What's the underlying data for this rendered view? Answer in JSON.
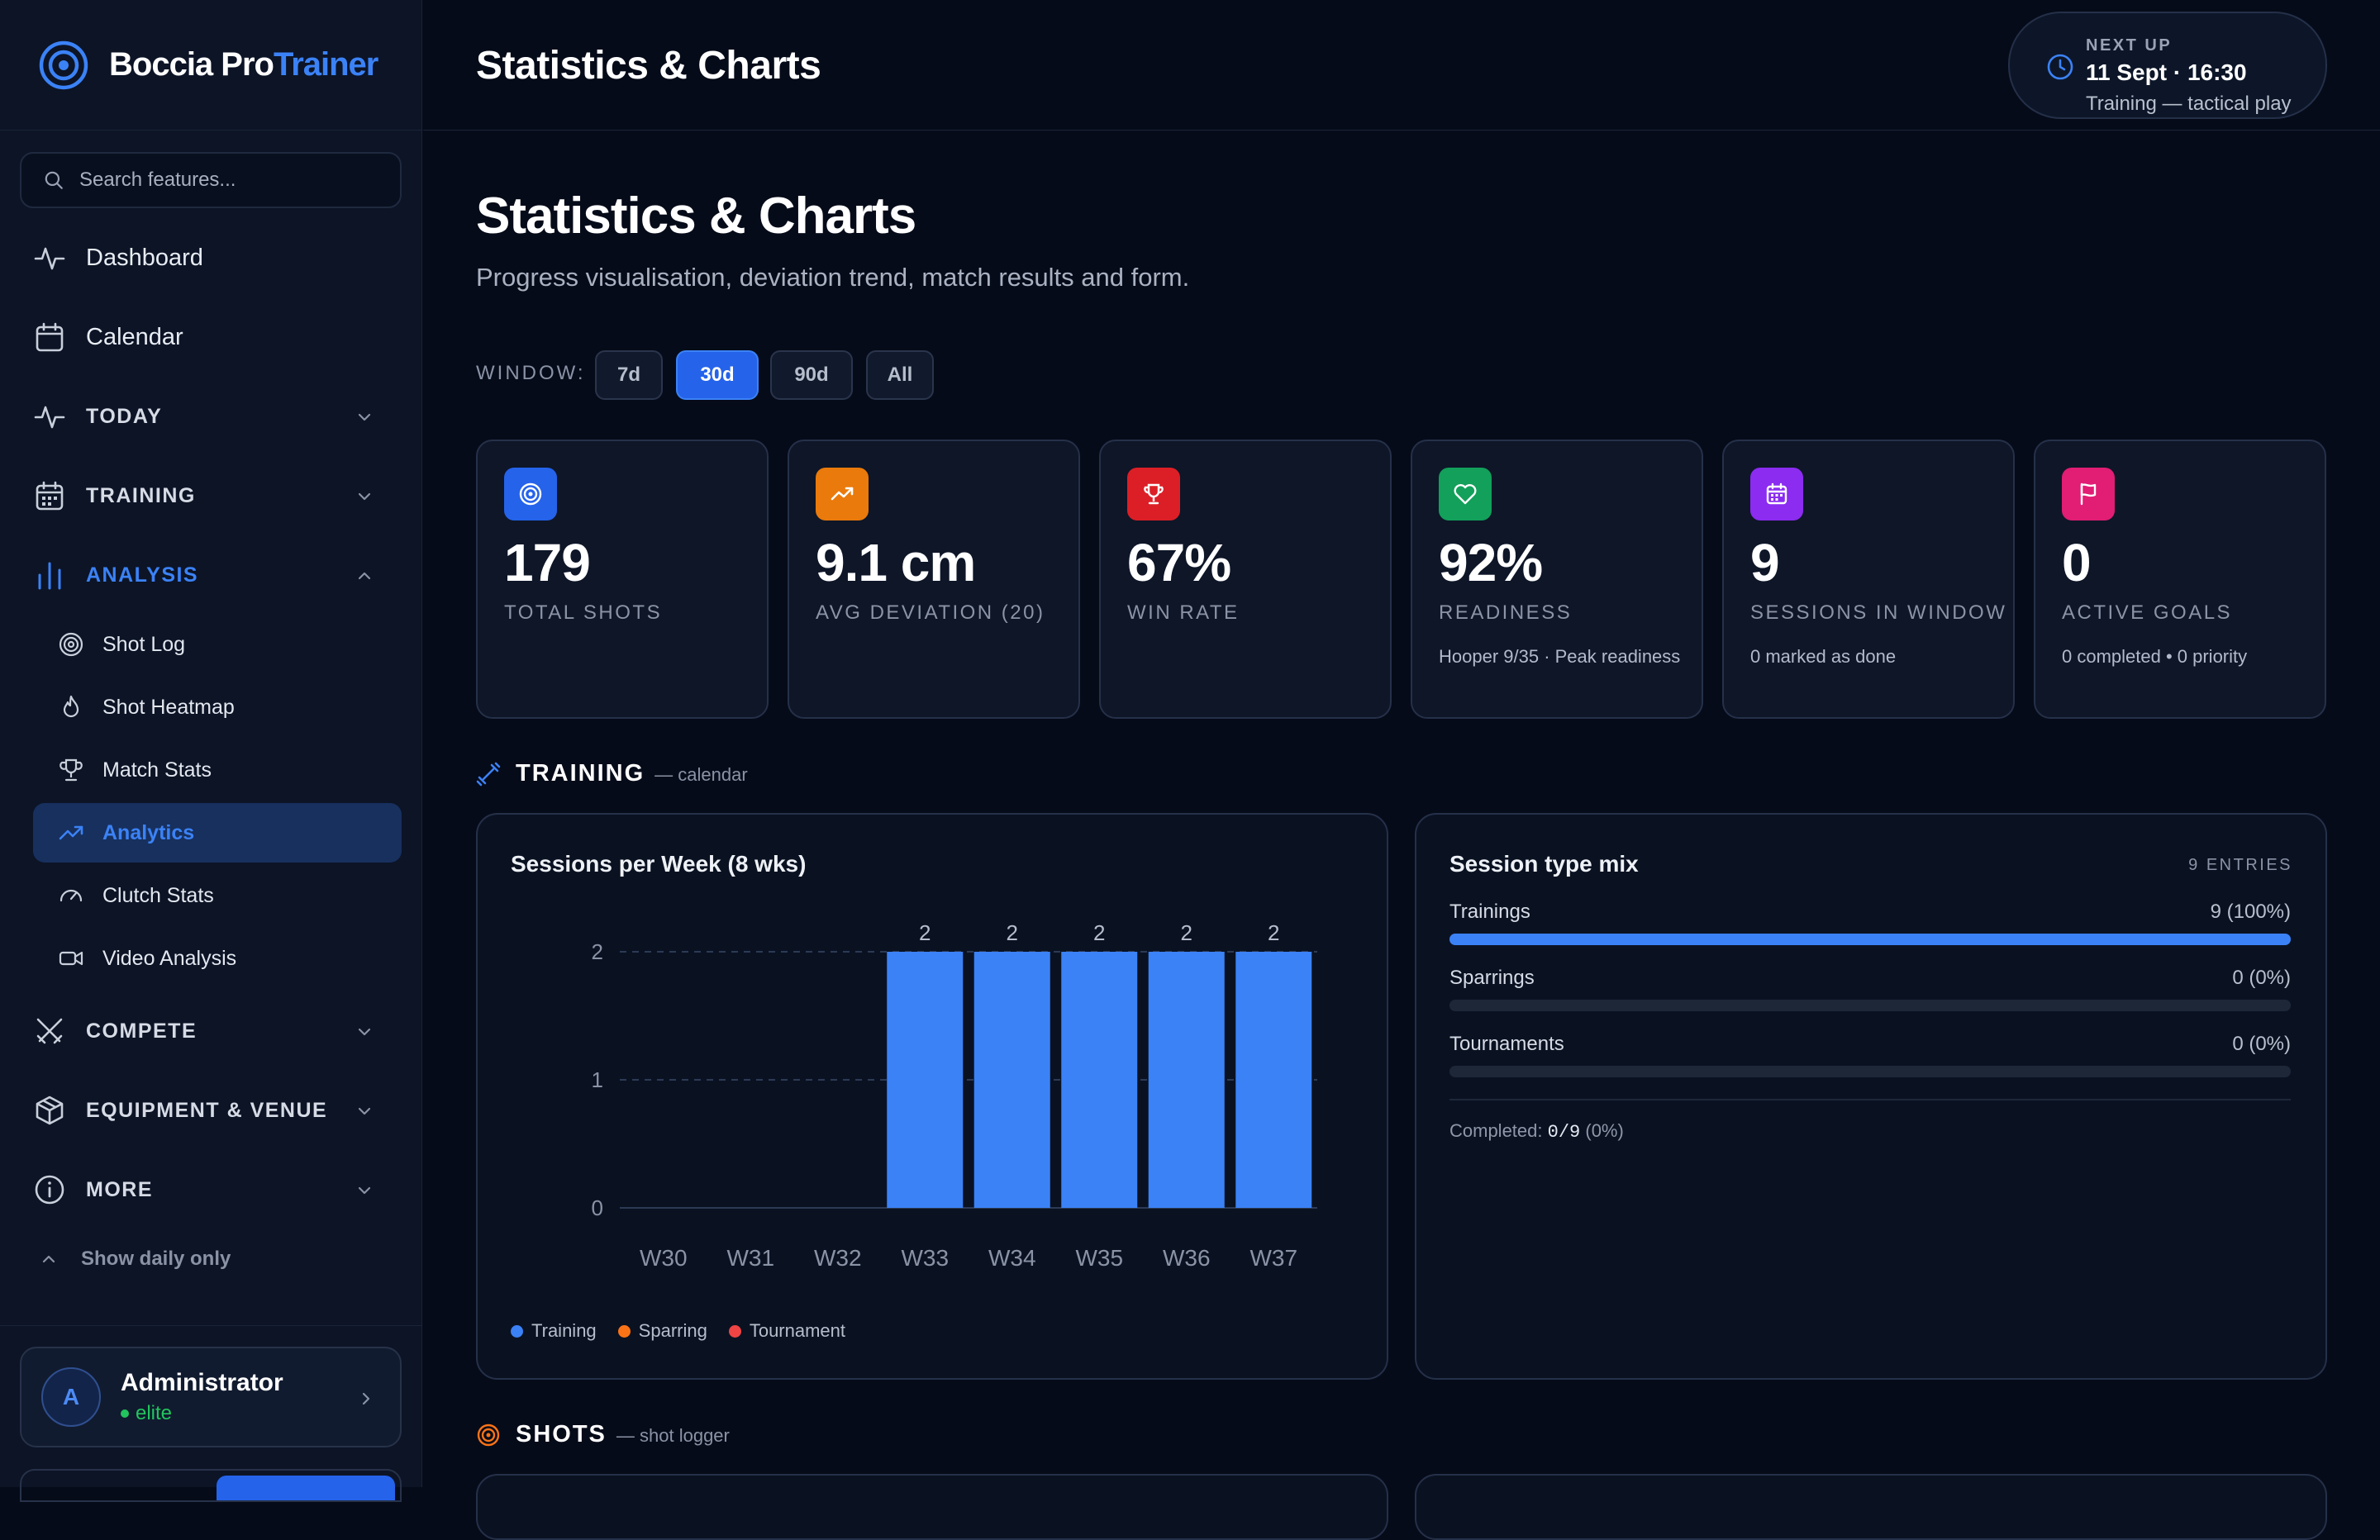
{
  "app": {
    "name_a": "Boccia Pro",
    "name_b": "Trainer",
    "accent": "#3b82f6"
  },
  "search": {
    "placeholder": "Search features..."
  },
  "nav": {
    "dashboard": "Dashboard",
    "calendar": "Calendar",
    "today": "TODAY",
    "training": "TRAINING",
    "analysis": "ANALYSIS",
    "analysis_items": [
      {
        "label": "Shot Log",
        "icon": "target-icon"
      },
      {
        "label": "Shot Heatmap",
        "icon": "flame-icon"
      },
      {
        "label": "Match Stats",
        "icon": "trophy-icon"
      },
      {
        "label": "Analytics",
        "icon": "trending-up-icon",
        "active": true
      },
      {
        "label": "Clutch Stats",
        "icon": "gauge-icon"
      },
      {
        "label": "Video Analysis",
        "icon": "video-icon"
      }
    ],
    "compete": "COMPETE",
    "equipment": "EQUIPMENT & VENUE",
    "more": "MORE",
    "show_daily": "Show daily only"
  },
  "user": {
    "initial": "A",
    "name": "Administrator",
    "role": "elite"
  },
  "topbar": {
    "title": "Statistics & Charts"
  },
  "next_up": {
    "label": "NEXT UP",
    "when": "11 Sept · 16:30",
    "what": "Training — tactical play"
  },
  "page": {
    "title": "Statistics & Charts",
    "subtitle": "Progress visualisation, deviation trend, match results and form.",
    "window_label": "WINDOW:",
    "window_options": [
      "7d",
      "30d",
      "90d",
      "All"
    ],
    "window_selected": "30d"
  },
  "stats": [
    {
      "value": "179",
      "label": "TOTAL SHOTS",
      "note": "",
      "icon": "target-icon",
      "color": "#2563eb"
    },
    {
      "value": "9.1 cm",
      "label": "AVG DEVIATION (20)",
      "note": "",
      "icon": "trending-up-icon",
      "color": "#ea7a0b"
    },
    {
      "value": "67%",
      "label": "WIN RATE",
      "note": "",
      "icon": "trophy-icon",
      "color": "#dc1f26"
    },
    {
      "value": "92%",
      "label": "READINESS",
      "note": "Hooper 9/35 · Peak readiness",
      "icon": "heart-icon",
      "color": "#12a05a"
    },
    {
      "value": "9",
      "label": "SESSIONS IN WINDOW",
      "note": "0 marked as done",
      "icon": "calendar-icon",
      "color": "#8b2cf0"
    },
    {
      "value": "0",
      "label": "ACTIVE GOALS",
      "note": "0 completed • 0 priority",
      "icon": "flag-icon",
      "color": "#e11d74"
    }
  ],
  "training_section": {
    "title": "TRAINING",
    "sub": "— calendar"
  },
  "shots_section": {
    "title": "SHOTS",
    "sub": "— shot logger"
  },
  "sessions_chart": {
    "title": "Sessions per Week (8 wks)",
    "legend": [
      {
        "name": "Training",
        "color": "#3b82f6"
      },
      {
        "name": "Sparring",
        "color": "#f97316"
      },
      {
        "name": "Tournament",
        "color": "#ef4444"
      }
    ]
  },
  "chart_data": {
    "type": "bar",
    "title": "Sessions per Week (8 wks)",
    "categories": [
      "W30",
      "W31",
      "W32",
      "W33",
      "W34",
      "W35",
      "W36",
      "W37"
    ],
    "series": [
      {
        "name": "Training",
        "values": [
          0,
          0,
          0,
          2,
          2,
          2,
          2,
          2
        ],
        "color": "#3b82f6"
      },
      {
        "name": "Sparring",
        "values": [
          0,
          0,
          0,
          0,
          0,
          0,
          0,
          0
        ],
        "color": "#f97316"
      },
      {
        "name": "Tournament",
        "values": [
          0,
          0,
          0,
          0,
          0,
          0,
          0,
          0
        ],
        "color": "#ef4444"
      }
    ],
    "yticks": [
      0,
      1,
      2
    ],
    "ylim": [
      0,
      2
    ],
    "grid": true,
    "legend_position": "bottom-left"
  },
  "mix": {
    "title": "Session type mix",
    "entries": "9 ENTRIES",
    "rows": [
      {
        "name": "Trainings",
        "value": "9 (100%)",
        "fraction": 1.0
      },
      {
        "name": "Sparrings",
        "value": "0 (0%)",
        "fraction": 0
      },
      {
        "name": "Tournaments",
        "value": "0 (0%)",
        "fraction": 0
      }
    ],
    "completed_label": "Completed:",
    "completed_value": "0/9",
    "completed_pct": "(0%)"
  }
}
